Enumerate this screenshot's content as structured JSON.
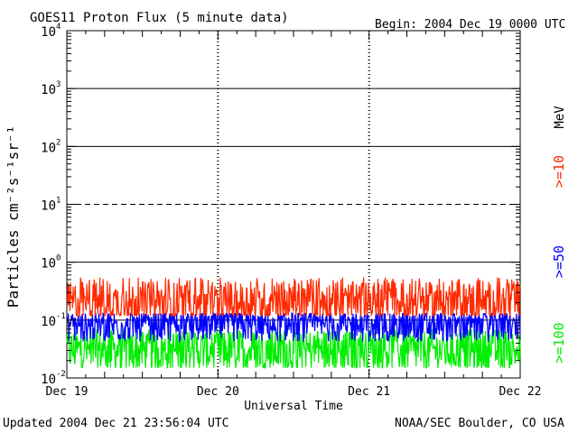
{
  "title": "GOES11 Proton Flux (5 minute data)",
  "begin": "Begin: 2004 Dec 19 0000 UTC",
  "updated": "Updated 2004 Dec 21 23:56:04 UTC",
  "credit": "NOAA/SEC Boulder, CO USA",
  "chart_data": {
    "type": "line",
    "title": "GOES11 Proton Flux (5 minute data)",
    "xlabel": "Universal Time",
    "ylabel": "Particles cm⁻²s⁻¹sr⁻¹",
    "y_scale": "log",
    "ylim": [
      0.01,
      10000
    ],
    "xlim": [
      0,
      3
    ],
    "x_ticks": [
      "Dec 19",
      "Dec 20",
      "Dec 21",
      "Dec 22"
    ],
    "y_ticks": [
      {
        "base": "10",
        "exp": "-2",
        "value": 0.01
      },
      {
        "base": "10",
        "exp": "-1",
        "value": 0.1
      },
      {
        "base": "10",
        "exp": "0",
        "value": 1
      },
      {
        "base": "10",
        "exp": "1",
        "value": 10
      },
      {
        "base": "10",
        "exp": "2",
        "value": 100
      },
      {
        "base": "10",
        "exp": "3",
        "value": 1000
      },
      {
        "base": "10",
        "exp": "4",
        "value": 10000
      }
    ],
    "grid": "horizontal lines at 1, 10 (dashed), 100, 1000; dashed vertical day markers",
    "legend_placement": "right (vertical)",
    "unit_label": "MeV",
    "series": [
      {
        "name": ">=10",
        "color": "#ff2a00",
        "baseline": 0.2,
        "min": 0.12,
        "max": 0.55
      },
      {
        "name": ">=50",
        "color": "#0000ff",
        "baseline": 0.08,
        "min": 0.04,
        "max": 0.13
      },
      {
        "name": ">=100",
        "color": "#00ee00",
        "baseline": 0.03,
        "min": 0.015,
        "max": 0.07
      }
    ]
  }
}
